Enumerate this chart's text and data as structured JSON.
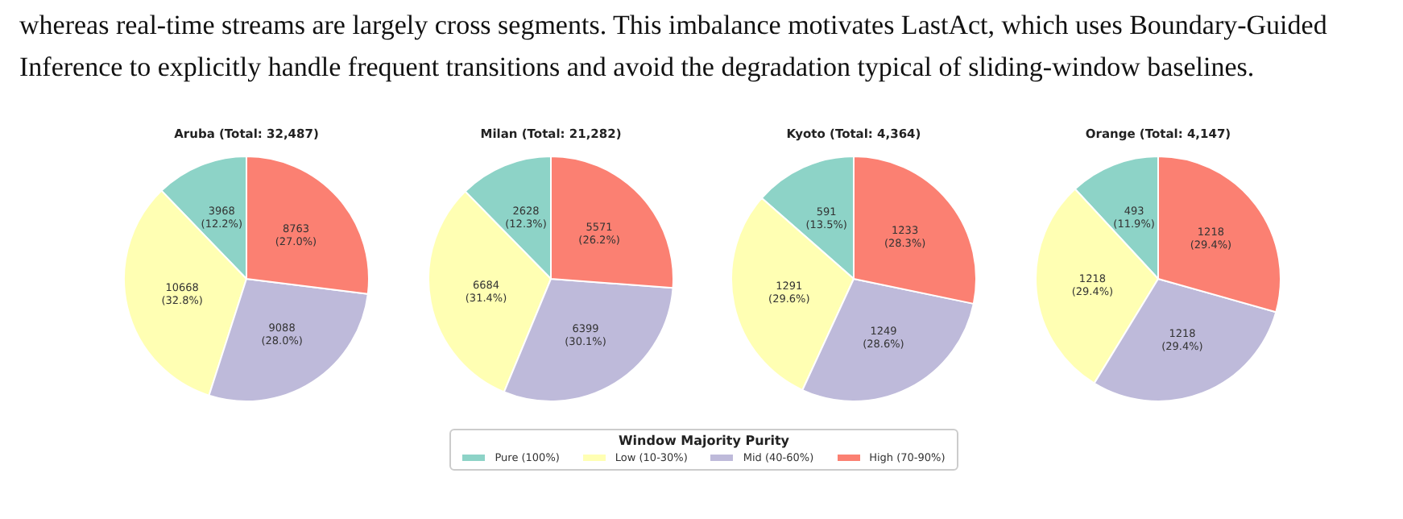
{
  "chart_data": [
    {
      "type": "other",
      "annotations": [
        "whereas real-time streams are largely cross segments. This imbalance motivates LastAct, which uses Boundary-Guided",
        "Inference to explicitly handle frequent transitions and avoid the degradation typical of sliding-window baselines."
      ]
    },
    {
      "type": "pie",
      "title": "Aruba (Total: 32,487)",
      "categories": [
        "Pure (100%)",
        "Low (10-30%)",
        "Mid (40-60%)",
        "High (70-90%)"
      ],
      "values": [
        3968,
        10668,
        9088,
        8763
      ],
      "colors": [
        "#8dd3c7",
        "#ffffb3",
        "#bebada",
        "#fb8072"
      ],
      "value_labels": [
        "3968\n(12.2%)",
        "10668\n(32.8%)",
        "9088\n(28.0%)",
        "8763\n(27.0%)"
      ],
      "legend": "bottom",
      "legend_title": "Window Majority Purity"
    },
    {
      "type": "pie",
      "title": "Milan (Total: 21,282)",
      "values": [
        2628,
        6684,
        6399,
        5571
      ],
      "colors": [
        "#8dd3c7",
        "#ffffb3",
        "#bebada",
        "#fb8072"
      ],
      "value_labels": [
        "2628\n(12.3%)",
        "6684\n(31.4%)",
        "6399\n(30.1%)",
        "5571\n(26.2%)"
      ]
    },
    {
      "type": "pie",
      "title": "Kyoto (Total: 4,364)",
      "values": [
        591,
        1291,
        1249,
        1233
      ],
      "colors": [
        "#8dd3c7",
        "#ffffb3",
        "#bebada",
        "#fb8072"
      ],
      "value_labels": [
        "591\n(13.5%)",
        "1291\n(29.6%)",
        "1249\n(28.6%)",
        "1233\n(28.3%)"
      ]
    },
    {
      "type": "pie",
      "title": "Orange (Total: 4,147)",
      "values": [
        493,
        1218,
        1218,
        1218
      ],
      "colors": [
        "#8dd3c7",
        "#ffffb3",
        "#bebada",
        "#fb8072"
      ],
      "value_labels": [
        "493\n(11.9%)",
        "1218\n(29.4%)",
        "1218\n(29.4%)",
        "1218\n(29.4%)"
      ]
    }
  ]
}
